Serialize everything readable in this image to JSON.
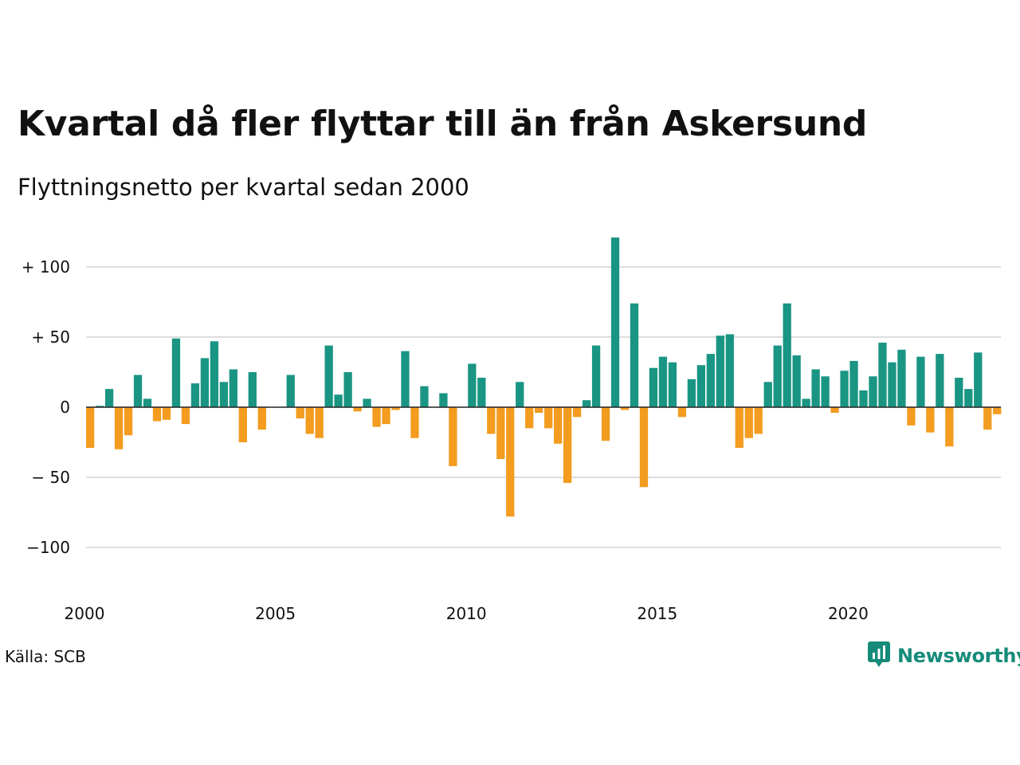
{
  "title": "Kvartal då fler flyttar till än från Askersund",
  "subtitle": "Flyttningsnetto per kvartal sedan 2000",
  "source": "Källa: SCB",
  "brand": {
    "name": "Newsworthy",
    "icon": "newsworthy-logo-icon",
    "color": "#168b7a"
  },
  "colors": {
    "positive": "#1a9584",
    "negative": "#f39c1f",
    "grid": "#dddddd",
    "zero": "#222222"
  },
  "chart_data": {
    "type": "bar",
    "x_start": "2000 Q1",
    "x_ticks": [
      {
        "label": "2000",
        "quarter_index": 0
      },
      {
        "label": "2005",
        "quarter_index": 20
      },
      {
        "label": "2010",
        "quarter_index": 40
      },
      {
        "label": "2015",
        "quarter_index": 60
      },
      {
        "label": "2020",
        "quarter_index": 80
      }
    ],
    "y_ticks": [
      {
        "value": 100,
        "label": "+ 100"
      },
      {
        "value": 50,
        "label": "+  50"
      },
      {
        "value": 0,
        "label": "0"
      },
      {
        "value": -50,
        "label": "− 50"
      },
      {
        "value": -100,
        "label": "−100"
      }
    ],
    "ylim": [
      -125,
      125
    ],
    "grid": true,
    "values": [
      -29,
      1,
      13,
      -30,
      -20,
      23,
      6,
      -10,
      -9,
      49,
      -12,
      17,
      35,
      47,
      18,
      27,
      -25,
      25,
      -16,
      0,
      0,
      23,
      -8,
      -19,
      -22,
      44,
      9,
      25,
      -3,
      6,
      -14,
      -12,
      -2,
      40,
      -22,
      15,
      0,
      10,
      -42,
      0,
      31,
      21,
      -19,
      -37,
      -78,
      18,
      -15,
      -4,
      -15,
      -26,
      -54,
      -7,
      5,
      44,
      -24,
      121,
      -2,
      74,
      -57,
      28,
      36,
      32,
      -7,
      20,
      30,
      38,
      51,
      52,
      -29,
      -22,
      -19,
      18,
      44,
      74,
      37,
      6,
      27,
      22,
      -4,
      26,
      33,
      12,
      22,
      46,
      32,
      41,
      -13,
      36,
      -18,
      38,
      -28,
      21,
      13,
      39,
      -16,
      -5
    ]
  }
}
